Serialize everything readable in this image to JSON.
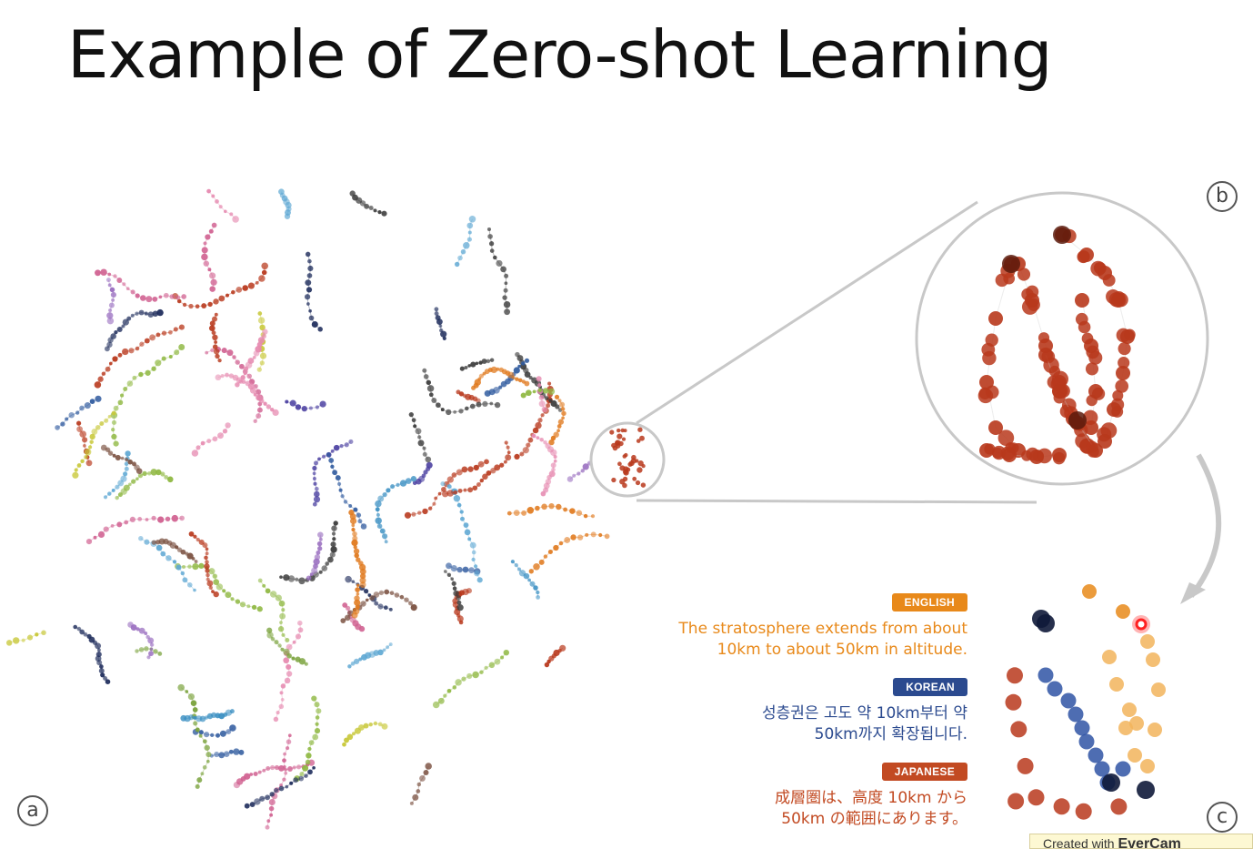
{
  "slide": {
    "title": "Example of Zero-shot Learning"
  },
  "panels": {
    "a": "a",
    "b": "b",
    "c": "c"
  },
  "languages": [
    {
      "badge": "ENGLISH",
      "color": "#e8891a",
      "text": "The stratosphere extends from about\n10km to about 50km in altitude."
    },
    {
      "badge": "KOREAN",
      "color": "#2b4a8f",
      "text": "성층권은 고도 약 10km부터 약\n50km까지 확장됩니다."
    },
    {
      "badge": "JAPANESE",
      "color": "#c24a22",
      "text": "成層圏は、高度 10km から\n50km の範囲にあります。"
    }
  ],
  "watermark": {
    "prefix": "Created with",
    "brand": "EverCam"
  },
  "colors": {
    "brick_red": "#b8381c",
    "dark_navy": "#1f2d5c",
    "blue": "#2f54a4",
    "orange": "#e8891a",
    "light_orange": "#f2b45c",
    "highlight_red": "#ff2020",
    "gray_line": "#c8c8c8"
  }
}
